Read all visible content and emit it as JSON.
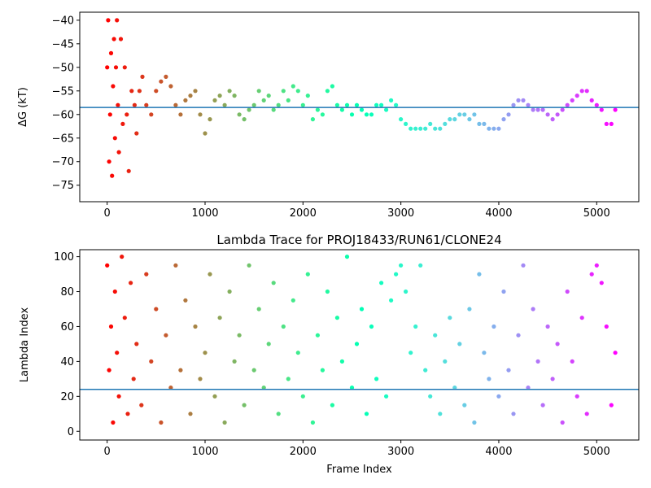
{
  "chart_data": [
    {
      "type": "scatter",
      "title": "",
      "xlabel": "",
      "ylabel": "ΔG (kT)",
      "xlim": [
        -280,
        5430
      ],
      "ylim": [
        -78.5,
        -38.3
      ],
      "xticks": [
        0,
        1000,
        2000,
        3000,
        4000,
        5000
      ],
      "xtick_labels": [
        "0",
        "1000",
        "2000",
        "3000",
        "4000",
        "5000"
      ],
      "yticks": [
        -40,
        -45,
        -50,
        -55,
        -60,
        -65,
        -70,
        -75
      ],
      "ytick_labels": [
        "−40",
        "−45",
        "−50",
        "−55",
        "−60",
        "−65",
        "−70",
        "−75"
      ],
      "hline": -58.5,
      "hline_color": "#1f77b4",
      "colormap": "rainbow",
      "grid": false,
      "series": [
        {
          "x": [
            0,
            10,
            20,
            30,
            40,
            50,
            60,
            70,
            80,
            90,
            100,
            110,
            120,
            140,
            160,
            180,
            200,
            220,
            250,
            280,
            300,
            330,
            360,
            400,
            450,
            500,
            550,
            600,
            650,
            700,
            750,
            800,
            850,
            900,
            950,
            1000,
            1050,
            1100,
            1150,
            1200,
            1250,
            1300,
            1350,
            1400,
            1450,
            1500,
            1550,
            1600,
            1650,
            1700,
            1750,
            1800,
            1850,
            1900,
            1950,
            2000,
            2050,
            2100,
            2150,
            2200,
            2250,
            2300,
            2350,
            2400,
            2450,
            2500,
            2550,
            2600,
            2650,
            2700,
            2750,
            2800,
            2850,
            2900,
            2950,
            3000,
            3050,
            3100,
            3150,
            3200,
            3250,
            3300,
            3350,
            3400,
            3450,
            3500,
            3550,
            3600,
            3650,
            3700,
            3750,
            3800,
            3850,
            3900,
            3950,
            4000,
            4050,
            4100,
            4150,
            4200,
            4250,
            4300,
            4350,
            4400,
            4450,
            4500,
            4550,
            4600,
            4650,
            4700,
            4750,
            4800,
            4850,
            4900,
            4950,
            5000,
            5050,
            5100,
            5150,
            5190
          ],
          "y": [
            -50,
            -40,
            -70,
            -60,
            -47,
            -73,
            -54,
            -44,
            -65,
            -50,
            -40,
            -58,
            -68,
            -44,
            -62,
            -50,
            -60,
            -72,
            -55,
            -58,
            -64,
            -55,
            -52,
            -58,
            -60,
            -55,
            -53,
            -52,
            -54,
            -58,
            -60,
            -57,
            -56,
            -55,
            -60,
            -64,
            -61,
            -57,
            -56,
            -58,
            -55,
            -56,
            -60,
            -61,
            -59,
            -58,
            -55,
            -57,
            -56,
            -59,
            -58,
            -55,
            -57,
            -54,
            -55,
            -58,
            -56,
            -61,
            -59,
            -60,
            -55,
            -54,
            -58,
            -59,
            -58,
            -60,
            -58,
            -59,
            -60,
            -60,
            -58,
            -58,
            -59,
            -57,
            -58,
            -61,
            -62,
            -63,
            -63,
            -63,
            -63,
            -62,
            -63,
            -63,
            -62,
            -61,
            -61,
            -60,
            -60,
            -61,
            -60,
            -62,
            -62,
            -63,
            -63,
            -63,
            -61,
            -60,
            -58,
            -57,
            -57,
            -58,
            -59,
            -59,
            -59,
            -60,
            -61,
            -60,
            -59,
            -58,
            -57,
            -56,
            -55,
            -55,
            -57,
            -58,
            -59,
            -62,
            -62,
            -59
          ]
        }
      ]
    },
    {
      "type": "scatter",
      "title": "Lambda Trace for PROJ18433/RUN61/CLONE24",
      "xlabel": "Frame Index",
      "ylabel": "Lambda Index",
      "xlim": [
        -280,
        5430
      ],
      "ylim": [
        -5,
        104
      ],
      "xticks": [
        0,
        1000,
        2000,
        3000,
        4000,
        5000
      ],
      "xtick_labels": [
        "0",
        "1000",
        "2000",
        "3000",
        "4000",
        "5000"
      ],
      "yticks": [
        0,
        20,
        40,
        60,
        80,
        100
      ],
      "ytick_labels": [
        "0",
        "20",
        "40",
        "60",
        "80",
        "100"
      ],
      "hline": 24,
      "hline_color": "#1f77b4",
      "colormap": "rainbow",
      "grid": false,
      "series": [
        {
          "x": [
            0,
            20,
            40,
            60,
            80,
            100,
            120,
            150,
            180,
            210,
            240,
            270,
            300,
            350,
            400,
            450,
            500,
            550,
            600,
            650,
            700,
            750,
            800,
            850,
            900,
            950,
            1000,
            1050,
            1100,
            1150,
            1200,
            1250,
            1300,
            1350,
            1400,
            1450,
            1500,
            1550,
            1600,
            1650,
            1700,
            1750,
            1800,
            1850,
            1900,
            1950,
            2000,
            2050,
            2100,
            2150,
            2200,
            2250,
            2300,
            2350,
            2400,
            2450,
            2500,
            2550,
            2600,
            2650,
            2700,
            2750,
            2800,
            2850,
            2900,
            2950,
            3000,
            3050,
            3100,
            3150,
            3200,
            3250,
            3300,
            3350,
            3400,
            3450,
            3500,
            3550,
            3600,
            3650,
            3700,
            3750,
            3800,
            3850,
            3900,
            3950,
            4000,
            4050,
            4100,
            4150,
            4200,
            4250,
            4300,
            4350,
            4400,
            4450,
            4500,
            4550,
            4600,
            4650,
            4700,
            4750,
            4800,
            4850,
            4900,
            4950,
            5000,
            5050,
            5100,
            5150,
            5190
          ],
          "y": [
            95,
            35,
            60,
            5,
            80,
            45,
            20,
            100,
            65,
            10,
            85,
            30,
            50,
            15,
            90,
            40,
            70,
            5,
            55,
            25,
            95,
            35,
            75,
            10,
            60,
            30,
            45,
            90,
            20,
            65,
            5,
            80,
            40,
            55,
            15,
            95,
            35,
            70,
            25,
            50,
            85,
            10,
            60,
            30,
            75,
            45,
            20,
            90,
            5,
            55,
            35,
            80,
            15,
            65,
            40,
            100,
            25,
            50,
            70,
            10,
            60,
            30,
            85,
            20,
            75,
            90,
            95,
            80,
            45,
            60,
            95,
            35,
            20,
            55,
            10,
            40,
            65,
            25,
            50,
            15,
            70,
            5,
            90,
            45,
            30,
            60,
            20,
            80,
            35,
            10,
            55,
            95,
            25,
            70,
            40,
            15,
            60,
            30,
            50,
            5,
            80,
            40,
            20,
            65,
            10,
            90,
            95,
            85,
            60,
            15,
            45
          ]
        }
      ]
    }
  ]
}
